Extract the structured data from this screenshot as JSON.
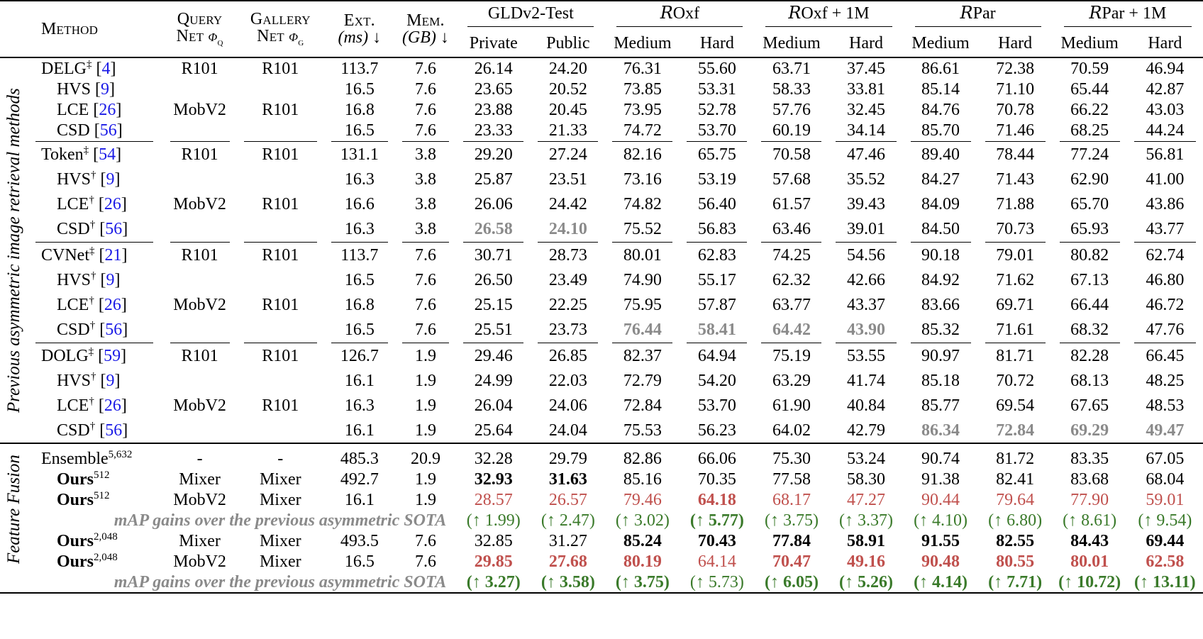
{
  "header": {
    "method": "Method",
    "query_net": [
      "Query",
      "Net"
    ],
    "query_sym": "φ",
    "query_sub": "q",
    "gallery_net": [
      "Gallery",
      "Net"
    ],
    "gallery_sym": "φ",
    "gallery_sub": "g",
    "ext": [
      "Ext.",
      "(ms)"
    ],
    "mem": [
      "Mem.",
      "(GB)"
    ],
    "down_arrow": "↓",
    "groups": [
      "GLDv2-Test",
      "Oxf",
      "Oxf + 1M",
      "Par",
      "Par + 1M"
    ],
    "script_R": "R",
    "sub_gld": [
      "Private",
      "Public"
    ],
    "sub_med_hard": [
      "Medium",
      "Hard"
    ]
  },
  "side_labels": {
    "prev": "Previous asymmetric image retrieval methods",
    "fusion": "Feature Fusion"
  },
  "blocks": [
    {
      "rows": [
        {
          "name": "DELG",
          "sup": "‡",
          "cite": "4",
          "q": "R101",
          "g": "R101",
          "ext": "113.7",
          "mem": "7.6",
          "v": [
            "26.14",
            "24.20",
            "76.31",
            "55.60",
            "63.71",
            "37.45",
            "86.61",
            "72.38",
            "70.59",
            "46.94"
          ]
        },
        {
          "name": "HVS",
          "sup": "",
          "cite": "9",
          "q": "",
          "g": "",
          "ext": "16.5",
          "mem": "7.6",
          "v": [
            "23.65",
            "20.52",
            "73.85",
            "53.31",
            "58.33",
            "33.81",
            "85.14",
            "71.10",
            "65.44",
            "42.87"
          ]
        },
        {
          "name": "LCE",
          "sup": "",
          "cite": "26",
          "q": "MobV2",
          "g": "R101",
          "ext": "16.8",
          "mem": "7.6",
          "v": [
            "23.88",
            "20.45",
            "73.95",
            "52.78",
            "57.76",
            "32.45",
            "84.76",
            "70.78",
            "66.22",
            "43.03"
          ]
        },
        {
          "name": "CSD",
          "sup": "",
          "cite": "56",
          "q": "",
          "g": "",
          "ext": "16.5",
          "mem": "7.6",
          "v": [
            "23.33",
            "21.33",
            "74.72",
            "53.70",
            "60.19",
            "34.14",
            "85.70",
            "71.46",
            "68.25",
            "44.24"
          ]
        }
      ]
    },
    {
      "rows": [
        {
          "name": "Token",
          "sup": "‡",
          "cite": "54",
          "q": "R101",
          "g": "R101",
          "ext": "131.1",
          "mem": "3.8",
          "v": [
            "29.20",
            "27.24",
            "82.16",
            "65.75",
            "70.58",
            "47.46",
            "89.40",
            "78.44",
            "77.24",
            "56.81"
          ]
        },
        {
          "name": "HVS",
          "sup": "†",
          "cite": "9",
          "q": "",
          "g": "",
          "ext": "16.3",
          "mem": "3.8",
          "v": [
            "25.87",
            "23.51",
            "73.16",
            "53.19",
            "57.68",
            "35.52",
            "84.27",
            "71.43",
            "62.90",
            "41.00"
          ]
        },
        {
          "name": "LCE",
          "sup": "†",
          "cite": "26",
          "q": "MobV2",
          "g": "R101",
          "ext": "16.6",
          "mem": "3.8",
          "v": [
            "26.06",
            "24.42",
            "74.82",
            "56.40",
            "61.57",
            "39.43",
            "84.09",
            "71.88",
            "65.70",
            "43.86"
          ]
        },
        {
          "name": "CSD",
          "sup": "†",
          "cite": "56",
          "q": "",
          "g": "",
          "ext": "16.3",
          "mem": "3.8",
          "v": [
            "26.58",
            "24.10",
            "75.52",
            "56.83",
            "63.46",
            "39.01",
            "84.50",
            "70.73",
            "65.93",
            "43.77"
          ],
          "gray": [
            0,
            1
          ]
        }
      ]
    },
    {
      "rows": [
        {
          "name": "CVNet",
          "sup": "‡",
          "cite": "21",
          "q": "R101",
          "g": "R101",
          "ext": "113.7",
          "mem": "7.6",
          "v": [
            "30.71",
            "28.73",
            "80.01",
            "62.83",
            "74.25",
            "54.56",
            "90.18",
            "79.01",
            "80.82",
            "62.74"
          ]
        },
        {
          "name": "HVS",
          "sup": "†",
          "cite": "9",
          "q": "",
          "g": "",
          "ext": "16.5",
          "mem": "7.6",
          "v": [
            "26.50",
            "23.49",
            "74.90",
            "55.17",
            "62.32",
            "42.66",
            "84.92",
            "71.62",
            "67.13",
            "46.80"
          ]
        },
        {
          "name": "LCE",
          "sup": "†",
          "cite": "26",
          "q": "MobV2",
          "g": "R101",
          "ext": "16.8",
          "mem": "7.6",
          "v": [
            "25.15",
            "22.25",
            "75.95",
            "57.87",
            "63.77",
            "43.37",
            "83.66",
            "69.71",
            "66.44",
            "46.72"
          ]
        },
        {
          "name": "CSD",
          "sup": "†",
          "cite": "56",
          "q": "",
          "g": "",
          "ext": "16.5",
          "mem": "7.6",
          "v": [
            "25.51",
            "23.73",
            "76.44",
            "58.41",
            "64.42",
            "43.90",
            "85.32",
            "71.61",
            "68.32",
            "47.76"
          ],
          "gray": [
            2,
            3,
            4,
            5
          ]
        }
      ]
    },
    {
      "rows": [
        {
          "name": "DOLG",
          "sup": "‡",
          "cite": "59",
          "q": "R101",
          "g": "R101",
          "ext": "126.7",
          "mem": "1.9",
          "v": [
            "29.46",
            "26.85",
            "82.37",
            "64.94",
            "75.19",
            "53.55",
            "90.97",
            "81.71",
            "82.28",
            "66.45"
          ]
        },
        {
          "name": "HVS",
          "sup": "†",
          "cite": "9",
          "q": "",
          "g": "",
          "ext": "16.1",
          "mem": "1.9",
          "v": [
            "24.99",
            "22.03",
            "72.79",
            "54.20",
            "63.29",
            "41.74",
            "85.18",
            "70.72",
            "68.13",
            "48.25"
          ]
        },
        {
          "name": "LCE",
          "sup": "†",
          "cite": "26",
          "q": "MobV2",
          "g": "R101",
          "ext": "16.3",
          "mem": "1.9",
          "v": [
            "26.04",
            "24.06",
            "72.84",
            "53.70",
            "61.90",
            "40.84",
            "85.77",
            "69.54",
            "67.65",
            "48.53"
          ]
        },
        {
          "name": "CSD",
          "sup": "†",
          "cite": "56",
          "q": "",
          "g": "",
          "ext": "16.1",
          "mem": "1.9",
          "v": [
            "25.64",
            "24.04",
            "75.53",
            "56.23",
            "64.02",
            "42.79",
            "86.34",
            "72.84",
            "69.29",
            "49.47"
          ],
          "gray": [
            6,
            7,
            8,
            9
          ]
        }
      ]
    }
  ],
  "fusion": {
    "ensemble": {
      "name": "Ensemble",
      "sup": "5,632",
      "q": "-",
      "g": "-",
      "ext": "485.3",
      "mem": "20.9",
      "v": [
        "32.28",
        "29.79",
        "82.86",
        "66.06",
        "75.30",
        "53.24",
        "90.74",
        "81.72",
        "83.35",
        "67.05"
      ]
    },
    "ours512_mixer": {
      "name": "Ours",
      "sup": "512",
      "q": "Mixer",
      "g": "Mixer",
      "ext": "492.7",
      "mem": "1.9",
      "v": [
        "32.93",
        "31.63",
        "85.16",
        "70.35",
        "77.58",
        "58.30",
        "91.38",
        "82.41",
        "83.68",
        "68.04"
      ]
    },
    "ours512_mob": {
      "name": "Ours",
      "sup": "512",
      "q": "MobV2",
      "g": "Mixer",
      "ext": "16.1",
      "mem": "1.9",
      "v": [
        "28.57",
        "26.57",
        "79.46",
        "64.18",
        "68.17",
        "47.27",
        "90.44",
        "79.64",
        "77.90",
        "59.01"
      ]
    },
    "gain_label": "mAP gains over the previous asymmetric SOTA",
    "gain512": [
      "1.99",
      "2.47",
      "3.02",
      "5.77",
      "3.75",
      "3.37",
      "4.10",
      "6.80",
      "8.61",
      "9.54"
    ],
    "ours2048_mixer": {
      "name": "Ours",
      "sup": "2,048",
      "q": "Mixer",
      "g": "Mixer",
      "ext": "493.5",
      "mem": "7.6",
      "v": [
        "32.85",
        "31.27",
        "85.24",
        "70.43",
        "77.84",
        "58.91",
        "91.55",
        "82.55",
        "84.43",
        "69.44"
      ]
    },
    "ours2048_mob": {
      "name": "Ours",
      "sup": "2,048",
      "q": "MobV2",
      "g": "Mixer",
      "ext": "16.5",
      "mem": "7.6",
      "v": [
        "29.85",
        "27.68",
        "80.19",
        "64.14",
        "70.47",
        "49.16",
        "90.48",
        "80.55",
        "80.01",
        "62.58"
      ]
    },
    "gain2048": [
      "3.27",
      "3.58",
      "3.75",
      "5.73",
      "6.05",
      "5.26",
      "4.14",
      "7.71",
      "10.72",
      "13.11"
    ],
    "up_arrow": "↑"
  }
}
